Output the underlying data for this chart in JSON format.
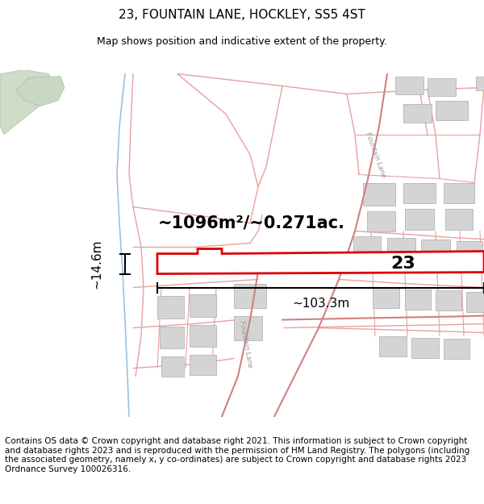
{
  "title": "23, FOUNTAIN LANE, HOCKLEY, SS5 4ST",
  "subtitle": "Map shows position and indicative extent of the property.",
  "footer": "Contains OS data © Crown copyright and database right 2021. This information is subject to Crown copyright and database rights 2023 and is reproduced with the permission of HM Land Registry. The polygons (including the associated geometry, namely x, y co-ordinates) are subject to Crown copyright and database rights 2023 Ordnance Survey 100026316.",
  "area_label": "~1096m²/~0.271ac.",
  "width_label": "~103.3m",
  "height_label": "~14.6m",
  "property_number": "23",
  "bg_color": "#ffffff",
  "map_bg": "#ffffff",
  "road_line": "#e8a0a0",
  "road_line2": "#d08080",
  "property_fill": "#ffffff",
  "property_border": "#dd0000",
  "gray_bld": "#d4d4d4",
  "gray_edge": "#aaaaaa",
  "green_fill": "#cdddc8",
  "green_fill2": "#c8d8c4",
  "green_edge": "#a8c0a0",
  "blue_line": "#a0c0e0",
  "dim_line": "#000000",
  "title_fontsize": 11,
  "subtitle_fontsize": 9,
  "footer_fontsize": 7.5,
  "figsize": [
    6.0,
    6.25
  ],
  "dpi": 100
}
